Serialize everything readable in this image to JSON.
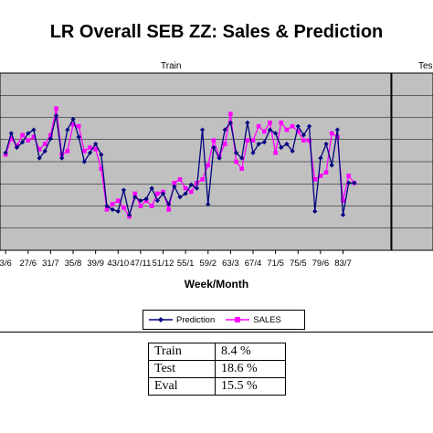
{
  "chart_data": {
    "type": "line",
    "title": "LR Overall SEB ZZ: Sales & Prediction",
    "xlabel": "Week/Month",
    "ylabel": "",
    "regions": [
      {
        "label": "Train"
      },
      {
        "label": "Tes"
      }
    ],
    "split_index": 68.6,
    "tick_labels": [
      "3/6",
      "27/6",
      "31/7",
      "35/8",
      "39/9",
      "43/10",
      "47/11",
      "51/12",
      "55/1",
      "59/2",
      "63/3",
      "67/4",
      "71/5",
      "75/5",
      "79/6",
      "83/7"
    ],
    "tick_positions": [
      0,
      4,
      8,
      12,
      16,
      20,
      24,
      28,
      32,
      36,
      40,
      44,
      48,
      52,
      56,
      60
    ],
    "x_range": [
      -1,
      76
    ],
    "ylim": [
      0,
      100
    ],
    "legend_position": "bottom",
    "series": [
      {
        "name": "Prediction",
        "color": "#000080",
        "values": [
          55,
          66,
          58,
          61,
          66,
          68,
          52,
          56,
          63,
          76,
          52,
          68,
          74,
          64,
          50,
          55,
          60,
          54,
          25,
          23,
          22,
          34,
          20,
          30,
          28,
          29,
          35,
          28,
          32,
          26,
          36,
          30,
          32,
          37,
          35,
          68,
          26,
          58,
          52,
          68,
          72,
          55,
          52,
          72,
          55,
          60,
          61,
          68,
          66,
          58,
          60,
          56,
          70,
          65,
          70,
          22,
          52,
          60,
          48,
          68,
          20,
          38,
          38
        ]
      },
      {
        "name": "SALES",
        "color": "#ff00ff",
        "values": [
          54,
          63,
          59,
          65,
          62,
          64,
          57,
          60,
          65,
          80,
          54,
          56,
          71,
          70,
          56,
          58,
          57,
          46,
          23,
          26,
          28,
          24,
          19,
          32,
          25,
          28,
          25,
          32,
          33,
          23,
          38,
          40,
          35,
          33,
          38,
          40,
          48,
          62,
          53,
          60,
          77,
          50,
          46,
          62,
          62,
          70,
          67,
          72,
          55,
          72,
          68,
          70,
          67,
          62,
          62,
          40,
          42,
          44,
          66,
          64,
          28,
          42,
          38
        ]
      }
    ]
  },
  "table": {
    "rows": [
      {
        "name": "Train",
        "value": "8.4 %"
      },
      {
        "name": "Test",
        "value": "18.6 %"
      },
      {
        "name": "Eval",
        "value": "15.5 %"
      }
    ]
  }
}
